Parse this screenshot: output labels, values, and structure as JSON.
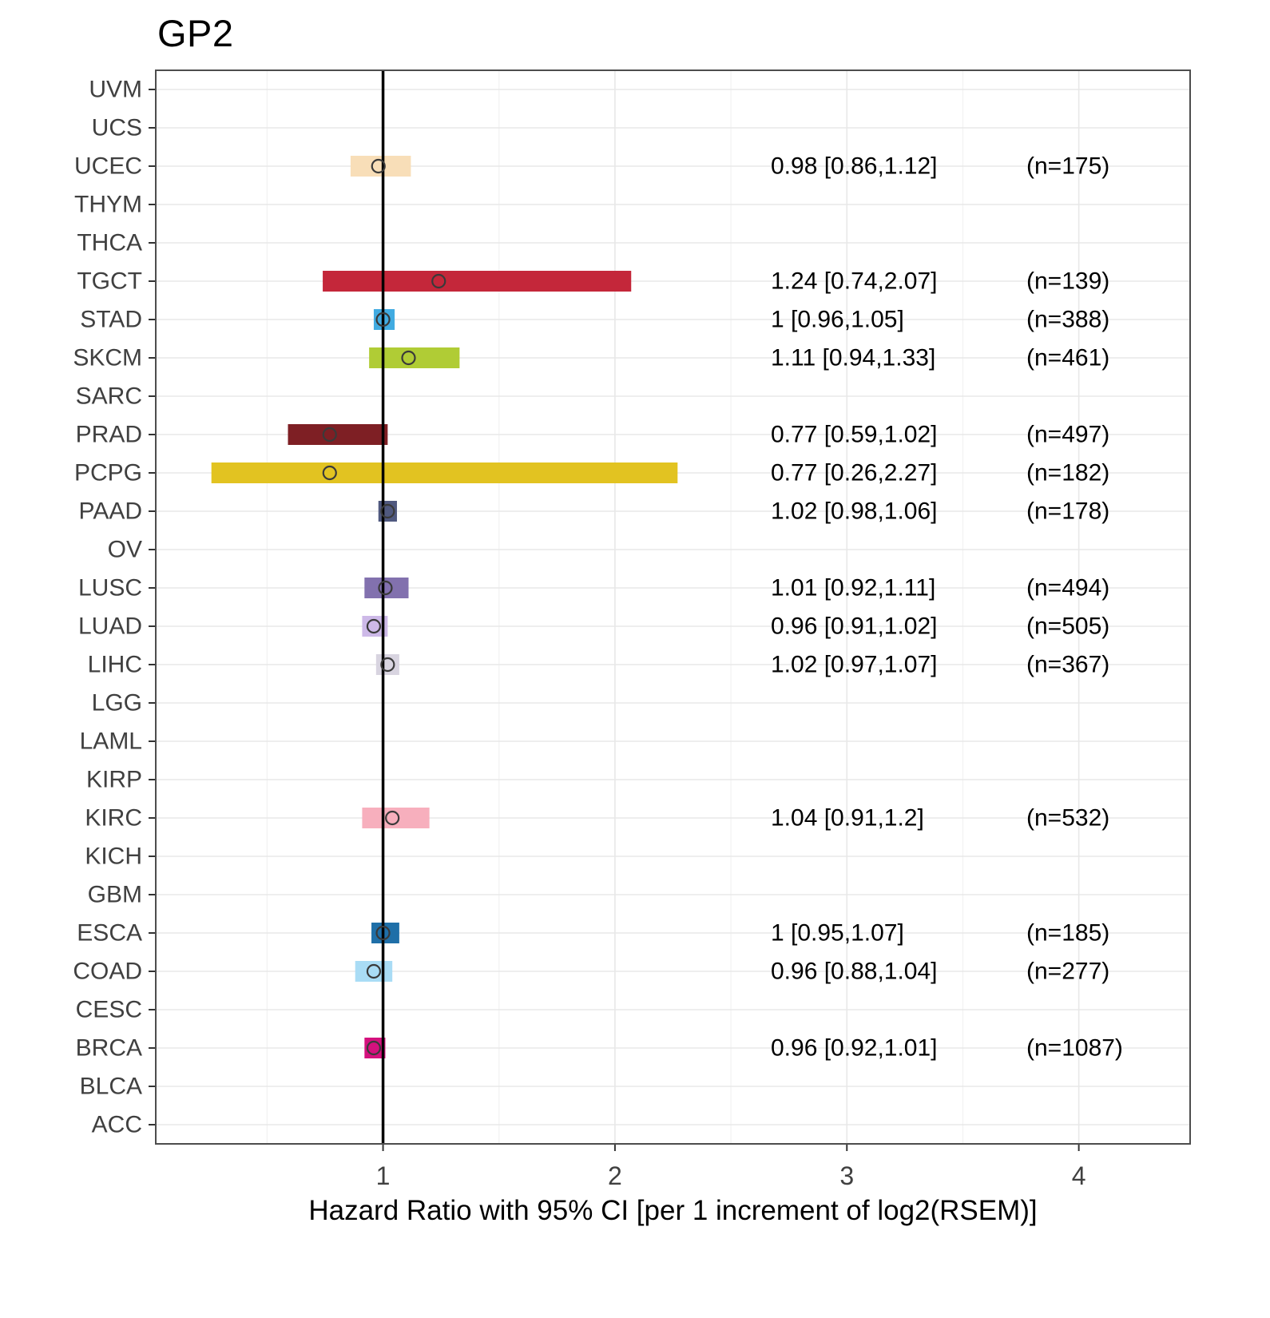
{
  "title": "GP2",
  "xlabel": "Hazard Ratio with 95% CI [per 1 increment of log2(RSEM)]",
  "colors": {
    "reference_line": "#000000",
    "panel_border": "#4d4d4d",
    "grid_major": "#e8e8e8",
    "grid_minor": "#f2f2f2",
    "axis_text": "#404040",
    "annotation_text": "#000000",
    "point_stroke": "#3a3a3a",
    "tick_mark": "#333333"
  },
  "chart_data": {
    "type": "forest",
    "x_domain": [
      0.02,
      4.48
    ],
    "x_ticks": [
      1,
      2,
      3,
      4
    ],
    "x_minor_ticks": [
      0.5,
      1.5,
      2.5,
      3.5
    ],
    "reference_line": 1,
    "xlabel": "Hazard Ratio with 95% CI [per 1 increment of log2(RSEM)]",
    "title": "GP2",
    "rows": [
      {
        "label": "UVM"
      },
      {
        "label": "UCS"
      },
      {
        "label": "UCEC",
        "hr": 0.98,
        "lo": 0.86,
        "hi": 1.12,
        "n": 175,
        "hr_text": "0.98 [0.86,1.12]",
        "n_text": "(n=175)",
        "color": "#f8deb8"
      },
      {
        "label": "THYM"
      },
      {
        "label": "THCA"
      },
      {
        "label": "TGCT",
        "hr": 1.24,
        "lo": 0.74,
        "hi": 2.07,
        "n": 139,
        "hr_text": "1.24 [0.74,2.07]",
        "n_text": "(n=139)",
        "color": "#c4273a"
      },
      {
        "label": "STAD",
        "hr": 1.0,
        "lo": 0.96,
        "hi": 1.05,
        "n": 388,
        "hr_text": "1 [0.96,1.05]",
        "n_text": "(n=388)",
        "color": "#41abe1"
      },
      {
        "label": "SKCM",
        "hr": 1.11,
        "lo": 0.94,
        "hi": 1.33,
        "n": 461,
        "hr_text": "1.11 [0.94,1.33]",
        "n_text": "(n=461)",
        "color": "#b0cc35"
      },
      {
        "label": "SARC"
      },
      {
        "label": "PRAD",
        "hr": 0.77,
        "lo": 0.59,
        "hi": 1.02,
        "n": 497,
        "hr_text": "0.77 [0.59,1.02]",
        "n_text": "(n=497)",
        "color": "#7e1f24"
      },
      {
        "label": "PCPG",
        "hr": 0.77,
        "lo": 0.26,
        "hi": 2.27,
        "n": 182,
        "hr_text": "0.77 [0.26,2.27]",
        "n_text": "(n=182)",
        "color": "#e2c321"
      },
      {
        "label": "PAAD",
        "hr": 1.02,
        "lo": 0.98,
        "hi": 1.06,
        "n": 178,
        "hr_text": "1.02 [0.98,1.06]",
        "n_text": "(n=178)",
        "color": "#50597f"
      },
      {
        "label": "OV"
      },
      {
        "label": "LUSC",
        "hr": 1.01,
        "lo": 0.92,
        "hi": 1.11,
        "n": 494,
        "hr_text": "1.01 [0.92,1.11]",
        "n_text": "(n=494)",
        "color": "#8271ae"
      },
      {
        "label": "LUAD",
        "hr": 0.96,
        "lo": 0.91,
        "hi": 1.02,
        "n": 505,
        "hr_text": "0.96 [0.91,1.02]",
        "n_text": "(n=505)",
        "color": "#cdb9e8"
      },
      {
        "label": "LIHC",
        "hr": 1.02,
        "lo": 0.97,
        "hi": 1.07,
        "n": 367,
        "hr_text": "1.02 [0.97,1.07]",
        "n_text": "(n=367)",
        "color": "#d8d4e0"
      },
      {
        "label": "LGG"
      },
      {
        "label": "LAML"
      },
      {
        "label": "KIRP"
      },
      {
        "label": "KIRC",
        "hr": 1.04,
        "lo": 0.91,
        "hi": 1.2,
        "n": 532,
        "hr_text": "1.04 [0.91,1.2]",
        "n_text": "(n=532)",
        "color": "#f7afbd"
      },
      {
        "label": "KICH"
      },
      {
        "label": "GBM"
      },
      {
        "label": "ESCA",
        "hr": 1.0,
        "lo": 0.95,
        "hi": 1.07,
        "n": 185,
        "hr_text": "1 [0.95,1.07]",
        "n_text": "(n=185)",
        "color": "#1f6fa8"
      },
      {
        "label": "COAD",
        "hr": 0.96,
        "lo": 0.88,
        "hi": 1.04,
        "n": 277,
        "hr_text": "0.96 [0.88,1.04]",
        "n_text": "(n=277)",
        "color": "#a9dcf5"
      },
      {
        "label": "CESC"
      },
      {
        "label": "BRCA",
        "hr": 0.96,
        "lo": 0.92,
        "hi": 1.01,
        "n": 1087,
        "hr_text": "0.96 [0.92,1.01]",
        "n_text": "(n=1087)",
        "color": "#d4117d"
      },
      {
        "label": "BLCA"
      },
      {
        "label": "ACC"
      }
    ]
  }
}
